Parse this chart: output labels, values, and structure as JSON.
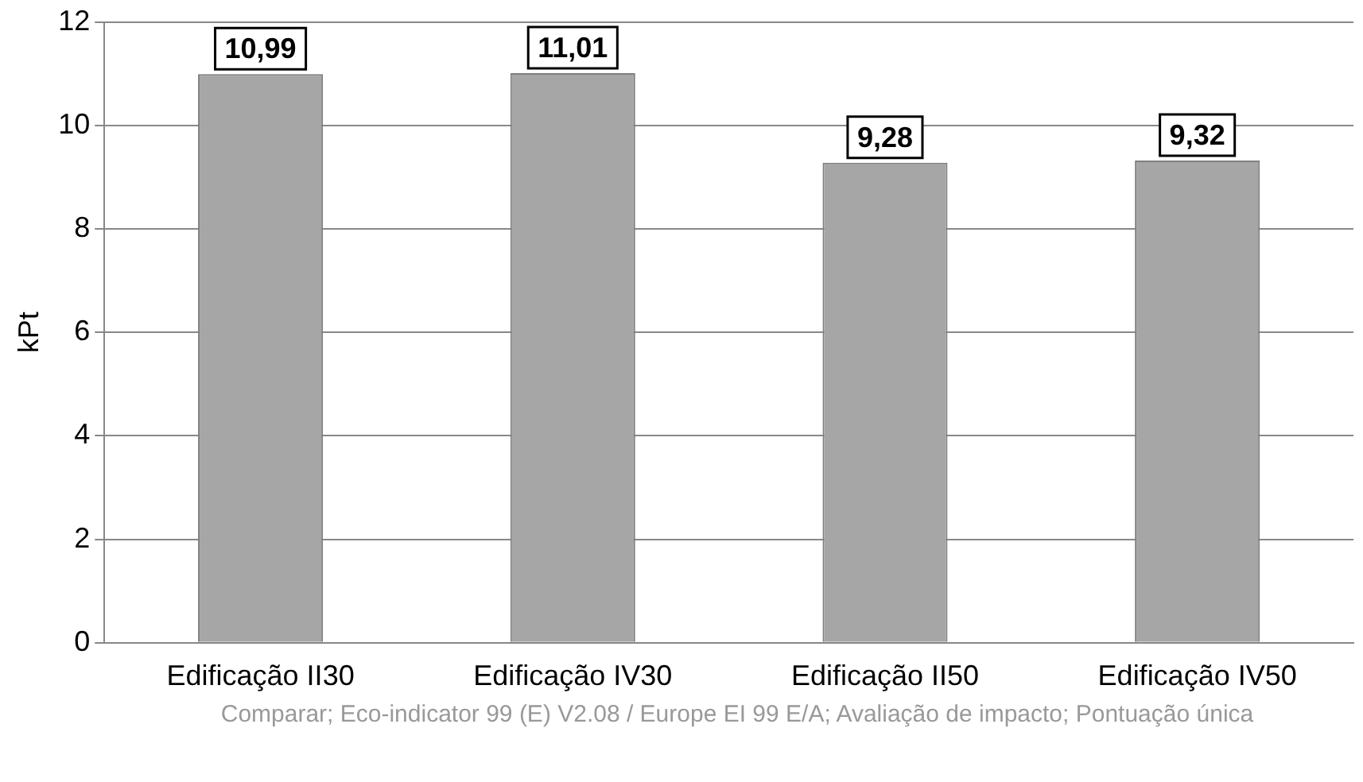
{
  "chart_data": {
    "type": "bar",
    "ylabel": "kPt",
    "categories": [
      "Edificação II30",
      "Edificação IV30",
      "Edificação II50",
      "Edificação IV50"
    ],
    "values": [
      10.99,
      11.01,
      9.28,
      9.32
    ],
    "value_labels": [
      "10,99",
      "11,01",
      "9,28",
      "9,32"
    ],
    "color": "#a6a6a6",
    "ylim": [
      0,
      12
    ],
    "yticks": [
      0,
      2,
      4,
      6,
      8,
      10,
      12
    ],
    "grid": "y",
    "annotations": [
      "Comparar; Eco-indicator 99 (E) V2.08 / Europe EI 99 E/A;  Avaliação de impacto; Pontuação única"
    ]
  }
}
